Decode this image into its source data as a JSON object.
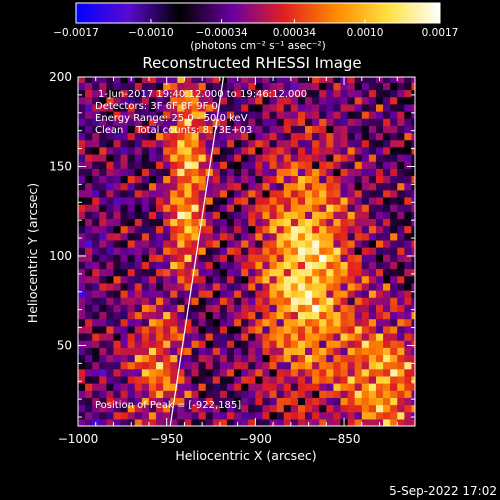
{
  "chart_data": {
    "type": "heatmap",
    "title": "Reconstructed RHESSI Image",
    "xlabel": "Heliocentric X (arcsec)",
    "ylabel": "Heliocentric Y (arcsec)",
    "xlim": [
      -1000,
      -810
    ],
    "ylim": [
      5,
      200
    ],
    "x_ticks": [
      {
        "value": -1000,
        "label": "−1000"
      },
      {
        "value": -950,
        "label": "−950"
      },
      {
        "value": -900,
        "label": "−900"
      },
      {
        "value": -850,
        "label": "−850"
      }
    ],
    "y_ticks": [
      {
        "value": 50,
        "label": "50"
      },
      {
        "value": 100,
        "label": "100"
      },
      {
        "value": 150,
        "label": "150"
      },
      {
        "value": 200,
        "label": "200"
      }
    ],
    "colorbar": {
      "min": -0.0017,
      "max": 0.0017,
      "colors": [
        "#0000ff",
        "#5a0ad0",
        "#000000",
        "#6a00a0",
        "#e02020",
        "#ff8a00",
        "#ffe040",
        "#ffffff"
      ],
      "ticks": [
        {
          "value": -0.0017,
          "label": "−0.0017"
        },
        {
          "value": -0.001,
          "label": "−0.0010"
        },
        {
          "value": -0.00034,
          "label": "−0.00034"
        },
        {
          "value": 0.00034,
          "label": "0.00034"
        },
        {
          "value": 0.001,
          "label": "0.0010"
        },
        {
          "value": 0.0017,
          "label": "0.0017"
        }
      ],
      "unit_label": "(photons cm⁻² s⁻¹ asec⁻²)"
    },
    "annotations": [
      "1-Jun-2017 19:40:12.000 to 19:46:12.000",
      "Detectors: 3F 6F 8F 9F 0",
      "Energy Range: 25.0 - 50.0 keV",
      "Clean    Total counts: 8.73E+03"
    ],
    "peak_label": "Position of Peak = [-922,185]",
    "peak": [
      -922,
      185
    ],
    "limb_line": [
      [
        -948,
        5
      ],
      [
        -918,
        200
      ]
    ],
    "grid": false,
    "legend": "none"
  },
  "footer": {
    "timestamp": "5-Sep-2022 17:02"
  }
}
